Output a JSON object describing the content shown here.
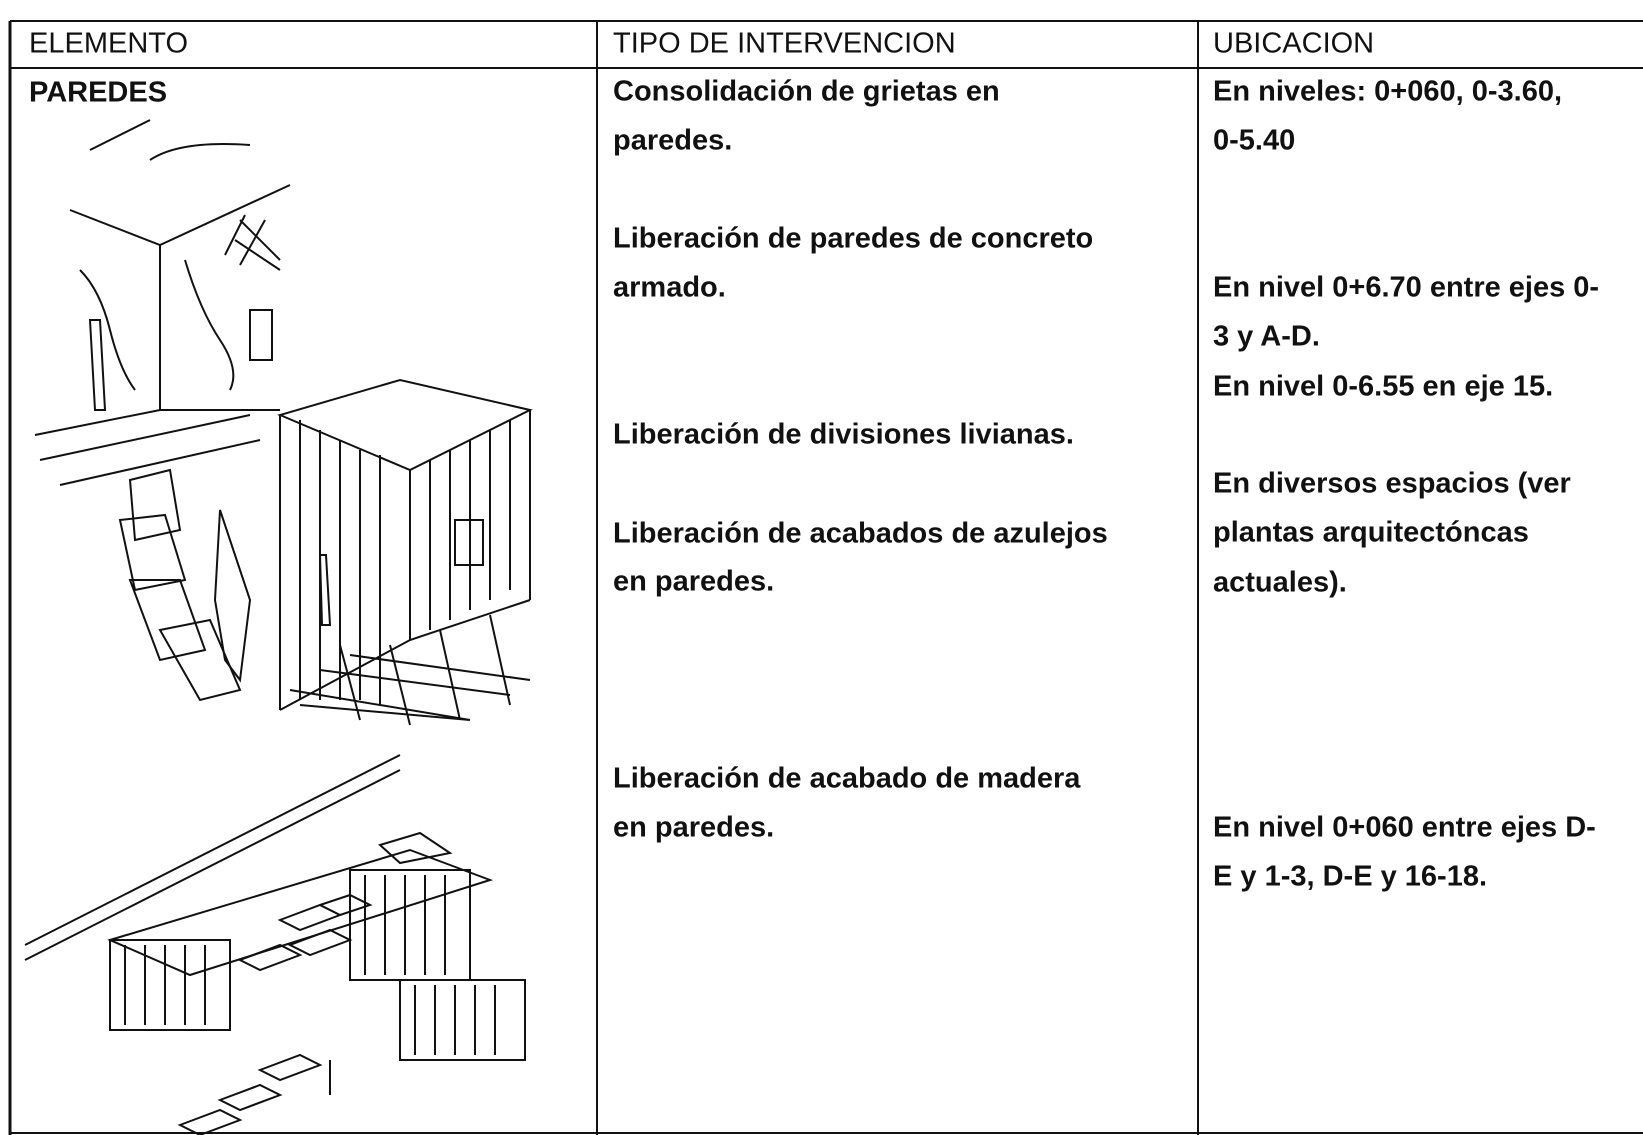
{
  "table": {
    "header": [
      "ELEMENTO",
      "TIPO DE INTERVENCION",
      "UBICACION"
    ],
    "element": "PAREDES",
    "interventions": [
      {
        "lines": [
          "Consolidación de grietas en",
          "paredes."
        ]
      },
      {
        "lines": [
          "Liberación de paredes de concreto",
          "armado."
        ]
      },
      {
        "lines": [
          "Liberación de divisiones livianas."
        ]
      },
      {
        "lines": [
          "Liberación de acabados de azulejos",
          "en paredes."
        ]
      },
      {
        "lines": [
          "Liberación de acabado de madera",
          "en paredes."
        ]
      }
    ],
    "locations": [
      {
        "lines": [
          "En niveles: 0+060,   0-3.60,",
          "0-5.40"
        ]
      },
      {
        "lines": [
          "En nivel 0+6.70 entre ejes 0-",
          "3 y A-D.",
          "En nivel 0-6.55 en eje 15."
        ]
      },
      {
        "lines": [
          "En diversos espacios (ver",
          "plantas arquitectóncas",
          "actuales)."
        ]
      },
      {
        "lines": [
          "En nivel 0+060 entre ejes D-",
          "E y 1-3, D-E y 16-18."
        ]
      }
    ]
  }
}
